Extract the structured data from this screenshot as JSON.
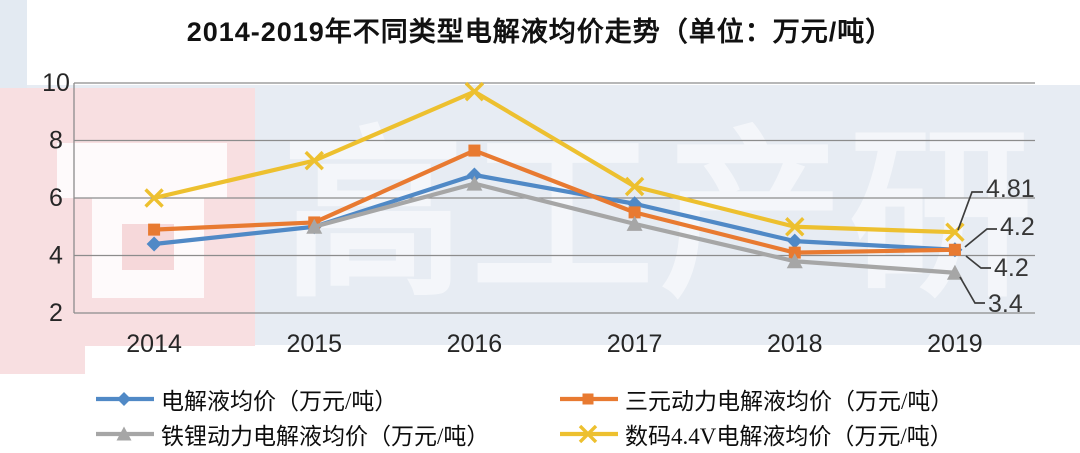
{
  "title": "2014-2019年不同类型电解液均价走势（单位：万元/吨）",
  "watermark": {
    "text": "高工产研"
  },
  "colors": {
    "blue": "#5089C6",
    "orange": "#E87A31",
    "gray": "#A6A6A6",
    "gold": "#EDC02F",
    "gridline": "#8C8C8C",
    "axis_text": "#262626",
    "annotation_text": "#363636"
  },
  "chart_data": {
    "type": "line",
    "x": [
      "2014",
      "2015",
      "2016",
      "2017",
      "2018",
      "2019"
    ],
    "ylim": [
      2,
      10
    ],
    "yticks": [
      2,
      4,
      6,
      8,
      10
    ],
    "grid": true,
    "legend_position": "bottom",
    "title": "2014-2019年不同类型电解液均价走势（单位：万元/吨）",
    "series": [
      {
        "name": "电解液均价（万元/吨）",
        "marker": "diamond",
        "color": "#5089C6",
        "values": [
          4.4,
          5.0,
          6.8,
          5.8,
          4.5,
          4.2
        ]
      },
      {
        "name": "三元动力电解液均价（万元/吨）",
        "marker": "square",
        "color": "#E87A31",
        "values": [
          4.9,
          5.15,
          7.65,
          5.5,
          4.1,
          4.2
        ]
      },
      {
        "name": "铁锂动力电解液均价（万元/吨）",
        "marker": "triangle",
        "color": "#A6A6A6",
        "values": [
          null,
          5.0,
          6.5,
          5.1,
          3.8,
          3.4
        ]
      },
      {
        "name": "数码4.4V电解液均价（万元/吨）",
        "marker": "x",
        "color": "#EDC02F",
        "values": [
          6.0,
          7.3,
          9.7,
          6.4,
          5.0,
          4.81
        ]
      }
    ],
    "annotations": [
      {
        "label": "4.81",
        "series": "数码4.4V电解液均价（万元/吨）",
        "x": "2019",
        "value": 4.81
      },
      {
        "label": "4.2",
        "series": "电解液均价（万元/吨）",
        "x": "2019",
        "value": 4.2
      },
      {
        "label": "4.2",
        "series": "三元动力电解液均价（万元/吨）",
        "x": "2019",
        "value": 4.2
      },
      {
        "label": "3.4",
        "series": "铁锂动力电解液均价（万元/吨）",
        "x": "2019",
        "value": 3.4
      }
    ]
  },
  "legend": {
    "items": [
      {
        "label": "电解液均价（万元/吨）"
      },
      {
        "label": "三元动力电解液均价（万元/吨）"
      },
      {
        "label": "铁锂动力电解液均价（万元/吨）"
      },
      {
        "label": "数码4.4V电解液均价（万元/吨）"
      }
    ]
  }
}
